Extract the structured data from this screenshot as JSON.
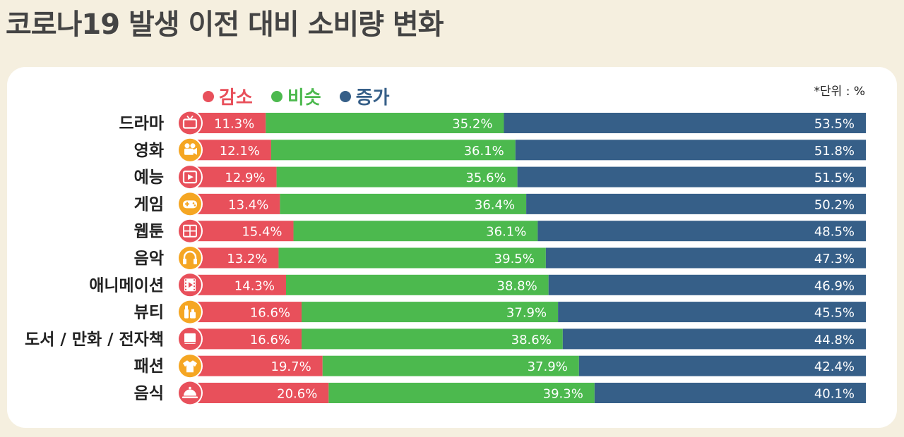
{
  "title": "코로나19 발생 이전 대비 소비량 변화",
  "unit_note": "*단위 : %",
  "colors": {
    "decrease": "#e8505b",
    "similar": "#4cb94e",
    "increase": "#365f88",
    "background": "#f5efdf",
    "panel": "#ffffff",
    "icon_red": "#e8505b",
    "icon_orange": "#f5a623"
  },
  "legend": [
    {
      "label": "감소",
      "color": "#e8505b"
    },
    {
      "label": "비슷",
      "color": "#4cb94e"
    },
    {
      "label": "증가",
      "color": "#365f88"
    }
  ],
  "chart_data": {
    "type": "bar",
    "stacked": "100%",
    "orientation": "horizontal",
    "categories": [
      "드라마",
      "영화",
      "예능",
      "게임",
      "웹툰",
      "음악",
      "애니메이션",
      "뷰티",
      "도서 / 만화 / 전자책",
      "패션",
      "음식"
    ],
    "series": [
      {
        "name": "감소",
        "values": [
          11.3,
          12.1,
          12.9,
          13.4,
          15.4,
          13.2,
          14.3,
          16.6,
          16.6,
          19.7,
          20.6
        ]
      },
      {
        "name": "비슷",
        "values": [
          35.2,
          36.1,
          35.6,
          36.4,
          36.1,
          39.5,
          38.8,
          37.9,
          38.6,
          37.9,
          39.3
        ]
      },
      {
        "name": "증가",
        "values": [
          53.5,
          51.8,
          51.5,
          50.2,
          48.5,
          47.3,
          46.9,
          45.5,
          44.8,
          42.4,
          40.1
        ]
      }
    ],
    "value_suffix": "%",
    "legend_position": "top",
    "grid": false,
    "icons": [
      "tv-icon",
      "movie-camera-icon",
      "play-screen-icon",
      "gamepad-icon",
      "webtoon-icon",
      "headphones-icon",
      "film-strip-icon",
      "cosmetics-icon",
      "book-icon",
      "shirt-icon",
      "food-cloche-icon"
    ],
    "icon_colors": [
      "red",
      "orange",
      "red",
      "orange",
      "red",
      "orange",
      "red",
      "orange",
      "red",
      "orange",
      "red"
    ]
  }
}
